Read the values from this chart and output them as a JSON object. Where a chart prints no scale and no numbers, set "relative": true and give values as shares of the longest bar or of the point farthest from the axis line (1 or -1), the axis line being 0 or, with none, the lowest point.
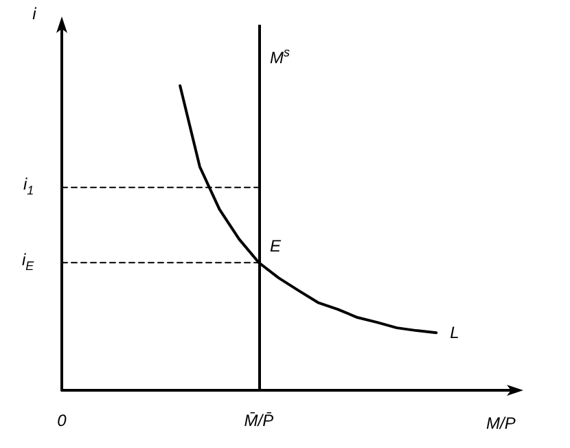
{
  "chart_data": {
    "type": "line",
    "relative": true,
    "xlabel": "M/P",
    "ylabel": "i",
    "grid": false,
    "marker": "none",
    "categories": [
      "0",
      null,
      null,
      null,
      null,
      null,
      null,
      null,
      null,
      null,
      "M̄/P̄",
      null,
      null,
      null,
      null,
      null,
      null,
      null,
      null,
      null,
      null,
      null,
      null,
      null
    ],
    "annotations": [
      {
        "text": "E",
        "x": "M̄/P̄",
        "y": 0.419
      }
    ],
    "ref_lines": [
      {
        "axis": "x",
        "value": "M̄/P̄",
        "label": "M$^{s}$",
        "color": "#000000",
        "line_style": "solid"
      }
    ],
    "series": [
      {
        "name": "L",
        "color": "#000000",
        "line_style": "solid",
        "values": [
          null,
          null,
          null,
          null,
          null,
          null,
          1,
          0.734,
          0.594,
          0.496,
          0.419,
          0.369,
          0.328,
          0.288,
          0.266,
          0.239,
          0.223,
          0.205,
          0.196,
          0.189,
          null,
          null,
          null,
          null
        ]
      },
      {
        "name": "i$_{1}$",
        "color": "#000000",
        "line_style": "dashed",
        "values": [
          0.666,
          0.666,
          0.666,
          0.666,
          0.666,
          0.666,
          0.666,
          0.666,
          0.666,
          0.666,
          0.666,
          null,
          null,
          null,
          null,
          null,
          null,
          null,
          null,
          null,
          null,
          null,
          null,
          null
        ]
      },
      {
        "name": "i$_{E}$",
        "color": "#000000",
        "line_style": "dashed",
        "values": [
          0.419,
          0.419,
          0.419,
          0.419,
          0.419,
          0.419,
          0.419,
          0.419,
          0.419,
          0.419,
          0.419,
          null,
          null,
          null,
          null,
          null,
          null,
          null,
          null,
          null,
          null,
          null,
          null,
          null
        ]
      }
    ]
  }
}
